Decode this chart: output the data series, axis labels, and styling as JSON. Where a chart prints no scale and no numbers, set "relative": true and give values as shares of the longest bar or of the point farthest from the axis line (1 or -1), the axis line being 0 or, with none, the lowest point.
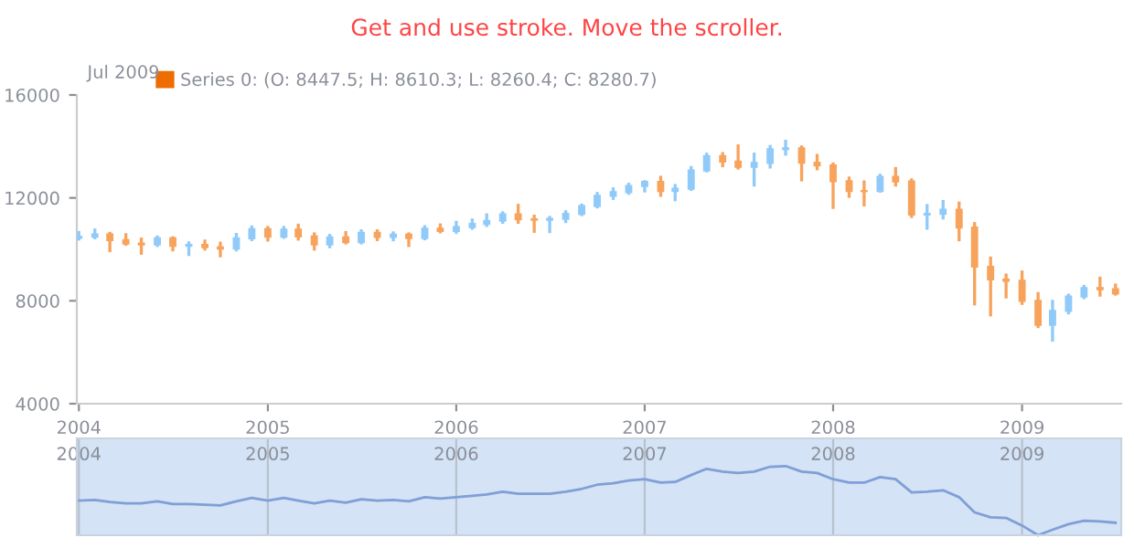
{
  "chart_data": [
    {
      "type": "candlestick",
      "title": "Get and use stroke. Move the scroller.",
      "annotations": [
        "Jul 2009"
      ],
      "legend": "top left",
      "x": [
        "2004-01",
        "2004-02",
        "2004-03",
        "2004-04",
        "2004-05",
        "2004-06",
        "2004-07",
        "2004-08",
        "2004-09",
        "2004-10",
        "2004-11",
        "2004-12",
        "2005-01",
        "2005-02",
        "2005-03",
        "2005-04",
        "2005-05",
        "2005-06",
        "2005-07",
        "2005-08",
        "2005-09",
        "2005-10",
        "2005-11",
        "2005-12",
        "2006-01",
        "2006-02",
        "2006-03",
        "2006-04",
        "2006-05",
        "2006-06",
        "2006-07",
        "2006-08",
        "2006-09",
        "2006-10",
        "2006-11",
        "2006-12",
        "2007-01",
        "2007-02",
        "2007-03",
        "2007-04",
        "2007-05",
        "2007-06",
        "2007-07",
        "2007-08",
        "2007-09",
        "2007-10",
        "2007-11",
        "2007-12",
        "2008-01",
        "2008-02",
        "2008-03",
        "2008-04",
        "2008-05",
        "2008-06",
        "2008-07",
        "2008-08",
        "2008-09",
        "2008-10",
        "2008-11",
        "2008-12",
        "2009-01",
        "2009-02",
        "2009-03",
        "2009-04",
        "2009-05",
        "2009-06",
        "2009-07"
      ],
      "xlim": [
        "2003-12-28",
        "2009-07-12"
      ],
      "xticks": [
        {
          "value": "2004-01",
          "label": "2004"
        },
        {
          "value": "2005-01",
          "label": "2005"
        },
        {
          "value": "2006-01",
          "label": "2006"
        },
        {
          "value": "2007-01",
          "label": "2007"
        },
        {
          "value": "2008-01",
          "label": "2008"
        },
        {
          "value": "2009-01",
          "label": "2009"
        }
      ],
      "ylim": [
        4000,
        16000
      ],
      "yticks": [
        4000,
        8000,
        12000,
        16000
      ],
      "series": [
        {
          "name": "Series 0: (O: 8447.5; H: 8610.3; L: 8260.4; C: 8280.7)",
          "color": "#ef6c00",
          "ohlc": [
            [
              10450,
              10650,
              10400,
              10488
            ],
            [
              10488,
              10750,
              10450,
              10584
            ],
            [
              10584,
              10620,
              9950,
              10358
            ],
            [
              10358,
              10570,
              10200,
              10226
            ],
            [
              10226,
              10400,
              9850,
              10188
            ],
            [
              10188,
              10480,
              10150,
              10435
            ],
            [
              10435,
              10450,
              9980,
              10140
            ],
            [
              10140,
              10250,
              9800,
              10174
            ],
            [
              10174,
              10320,
              10010,
              10080
            ],
            [
              10080,
              10240,
              9750,
              10027
            ],
            [
              10027,
              10580,
              9980,
              10428
            ],
            [
              10428,
              10870,
              10380,
              10783
            ],
            [
              10783,
              10850,
              10360,
              10490
            ],
            [
              10490,
              10850,
              10470,
              10766
            ],
            [
              10766,
              10940,
              10400,
              10504
            ],
            [
              10504,
              10600,
              10010,
              10193
            ],
            [
              10193,
              10540,
              10100,
              10467
            ],
            [
              10467,
              10650,
              10250,
              10275
            ],
            [
              10275,
              10720,
              10250,
              10641
            ],
            [
              10641,
              10720,
              10380,
              10482
            ],
            [
              10482,
              10640,
              10370,
              10569
            ],
            [
              10569,
              10600,
              10150,
              10440
            ],
            [
              10440,
              10880,
              10410,
              10806
            ],
            [
              10806,
              10950,
              10680,
              10718
            ],
            [
              10718,
              11050,
              10660,
              10865
            ],
            [
              10865,
              11140,
              10820,
              10993
            ],
            [
              10993,
              11340,
              10930,
              11109
            ],
            [
              11109,
              11420,
              11050,
              11367
            ],
            [
              11367,
              11710,
              11050,
              11168
            ],
            [
              11168,
              11290,
              10700,
              11150
            ],
            [
              11150,
              11240,
              10690,
              11186
            ],
            [
              11186,
              11460,
              11080,
              11381
            ],
            [
              11381,
              11720,
              11350,
              11679
            ],
            [
              11679,
              12170,
              11650,
              12081
            ],
            [
              12081,
              12350,
              11980,
              12222
            ],
            [
              12222,
              12530,
              12180,
              12463
            ],
            [
              12463,
              12630,
              12270,
              12622
            ],
            [
              12622,
              12800,
              12100,
              12269
            ],
            [
              12269,
              12480,
              11930,
              12354
            ],
            [
              12354,
              13180,
              12330,
              13063
            ],
            [
              13063,
              13700,
              13050,
              13628
            ],
            [
              13628,
              13720,
              13250,
              13409
            ],
            [
              13409,
              14020,
              13160,
              13212
            ],
            [
              13212,
              13700,
              12500,
              13358
            ],
            [
              13358,
              14000,
              13200,
              13896
            ],
            [
              13896,
              14200,
              13700,
              13930
            ],
            [
              13930,
              13980,
              12700,
              13372
            ],
            [
              13372,
              13650,
              13130,
              13265
            ],
            [
              13265,
              13320,
              11630,
              12650
            ],
            [
              12650,
              12770,
              12060,
              12266
            ],
            [
              12266,
              12620,
              11730,
              12263
            ],
            [
              12263,
              12880,
              12260,
              12820
            ],
            [
              12820,
              13140,
              12500,
              12638
            ],
            [
              12638,
              12700,
              11280,
              11350
            ],
            [
              11350,
              11700,
              10820,
              11378
            ],
            [
              11378,
              11860,
              11220,
              11544
            ],
            [
              11544,
              11800,
              10370,
              10851
            ],
            [
              10851,
              11000,
              7880,
              9325
            ],
            [
              9325,
              9660,
              7450,
              8829
            ],
            [
              8829,
              9000,
              8150,
              8776
            ],
            [
              8776,
              9120,
              7900,
              8001
            ],
            [
              8001,
              8280,
              7000,
              7063
            ],
            [
              7063,
              7980,
              6470,
              7609
            ],
            [
              7609,
              8220,
              7530,
              8168
            ],
            [
              8168,
              8560,
              8120,
              8500
            ],
            [
              8500,
              8880,
              8220,
              8447.5
            ],
            [
              8447.5,
              8610.3,
              8260.4,
              8280.7
            ]
          ],
          "colors": [
            "#90caf9",
            "#90caf9",
            "#f7a35c",
            "#f7a35c",
            "#f7a35c",
            "#90caf9",
            "#f7a35c",
            "#90caf9",
            "#f7a35c",
            "#f7a35c",
            "#90caf9",
            "#90caf9",
            "#f7a35c",
            "#90caf9",
            "#f7a35c",
            "#f7a35c",
            "#90caf9",
            "#f7a35c",
            "#90caf9",
            "#f7a35c",
            "#90caf9",
            "#f7a35c",
            "#90caf9",
            "#f7a35c",
            "#90caf9",
            "#90caf9",
            "#90caf9",
            "#90caf9",
            "#f7a35c",
            "#f7a35c",
            "#90caf9",
            "#90caf9",
            "#90caf9",
            "#90caf9",
            "#90caf9",
            "#90caf9",
            "#90caf9",
            "#f7a35c",
            "#90caf9",
            "#90caf9",
            "#90caf9",
            "#f7a35c",
            "#f7a35c",
            "#90caf9",
            "#90caf9",
            "#90caf9",
            "#f7a35c",
            "#f7a35c",
            "#f7a35c",
            "#f7a35c",
            "#f7a35c",
            "#90caf9",
            "#f7a35c",
            "#f7a35c",
            "#90caf9",
            "#90caf9",
            "#f7a35c",
            "#f7a35c",
            "#f7a35c",
            "#f7a35c",
            "#f7a35c",
            "#f7a35c",
            "#90caf9",
            "#90caf9",
            "#90caf9",
            "#f7a35c",
            "#f7a35c"
          ]
        }
      ]
    },
    {
      "type": "line",
      "relative": true,
      "grid": "x",
      "tick_labels": "x",
      "x": [
        "2004-01",
        "2004-02",
        "2004-03",
        "2004-04",
        "2004-05",
        "2004-06",
        "2004-07",
        "2004-08",
        "2004-09",
        "2004-10",
        "2004-11",
        "2004-12",
        "2005-01",
        "2005-02",
        "2005-03",
        "2005-04",
        "2005-05",
        "2005-06",
        "2005-07",
        "2005-08",
        "2005-09",
        "2005-10",
        "2005-11",
        "2005-12",
        "2006-01",
        "2006-02",
        "2006-03",
        "2006-04",
        "2006-05",
        "2006-06",
        "2006-07",
        "2006-08",
        "2006-09",
        "2006-10",
        "2006-11",
        "2006-12",
        "2007-01",
        "2007-02",
        "2007-03",
        "2007-04",
        "2007-05",
        "2007-06",
        "2007-07",
        "2007-08",
        "2007-09",
        "2007-10",
        "2007-11",
        "2007-12",
        "2008-01",
        "2008-02",
        "2008-03",
        "2008-04",
        "2008-05",
        "2008-06",
        "2008-07",
        "2008-08",
        "2008-09",
        "2008-10",
        "2008-11",
        "2008-12",
        "2009-01",
        "2009-02",
        "2009-03",
        "2009-04",
        "2009-05",
        "2009-06",
        "2009-07"
      ],
      "xlim": [
        "2003-12-28",
        "2009-07-12"
      ],
      "xticks": [
        {
          "value": "2004-01",
          "label": "2004"
        },
        {
          "value": "2005-01",
          "label": "2005"
        },
        {
          "value": "2006-01",
          "label": "2006"
        },
        {
          "value": "2007-01",
          "label": "2007"
        },
        {
          "value": "2008-01",
          "label": "2008"
        },
        {
          "value": "2009-01",
          "label": "2009"
        }
      ],
      "series": [
        {
          "color": "#7f9fd6",
          "values": [
            0.5,
            0.51,
            0.48,
            0.46,
            0.46,
            0.49,
            0.45,
            0.45,
            0.44,
            0.43,
            0.49,
            0.54,
            0.5,
            0.54,
            0.5,
            0.46,
            0.5,
            0.47,
            0.52,
            0.5,
            0.51,
            0.49,
            0.55,
            0.53,
            0.55,
            0.57,
            0.59,
            0.63,
            0.6,
            0.6,
            0.6,
            0.63,
            0.67,
            0.73,
            0.75,
            0.79,
            0.81,
            0.76,
            0.77,
            0.87,
            0.96,
            0.92,
            0.9,
            0.92,
            0.99,
            1,
            0.92,
            0.9,
            0.81,
            0.76,
            0.76,
            0.84,
            0.81,
            0.62,
            0.63,
            0.65,
            0.55,
            0.33,
            0.26,
            0.25,
            0.14,
            0,
            0.08,
            0.16,
            0.21,
            0.2,
            0.18
          ]
        }
      ]
    }
  ]
}
